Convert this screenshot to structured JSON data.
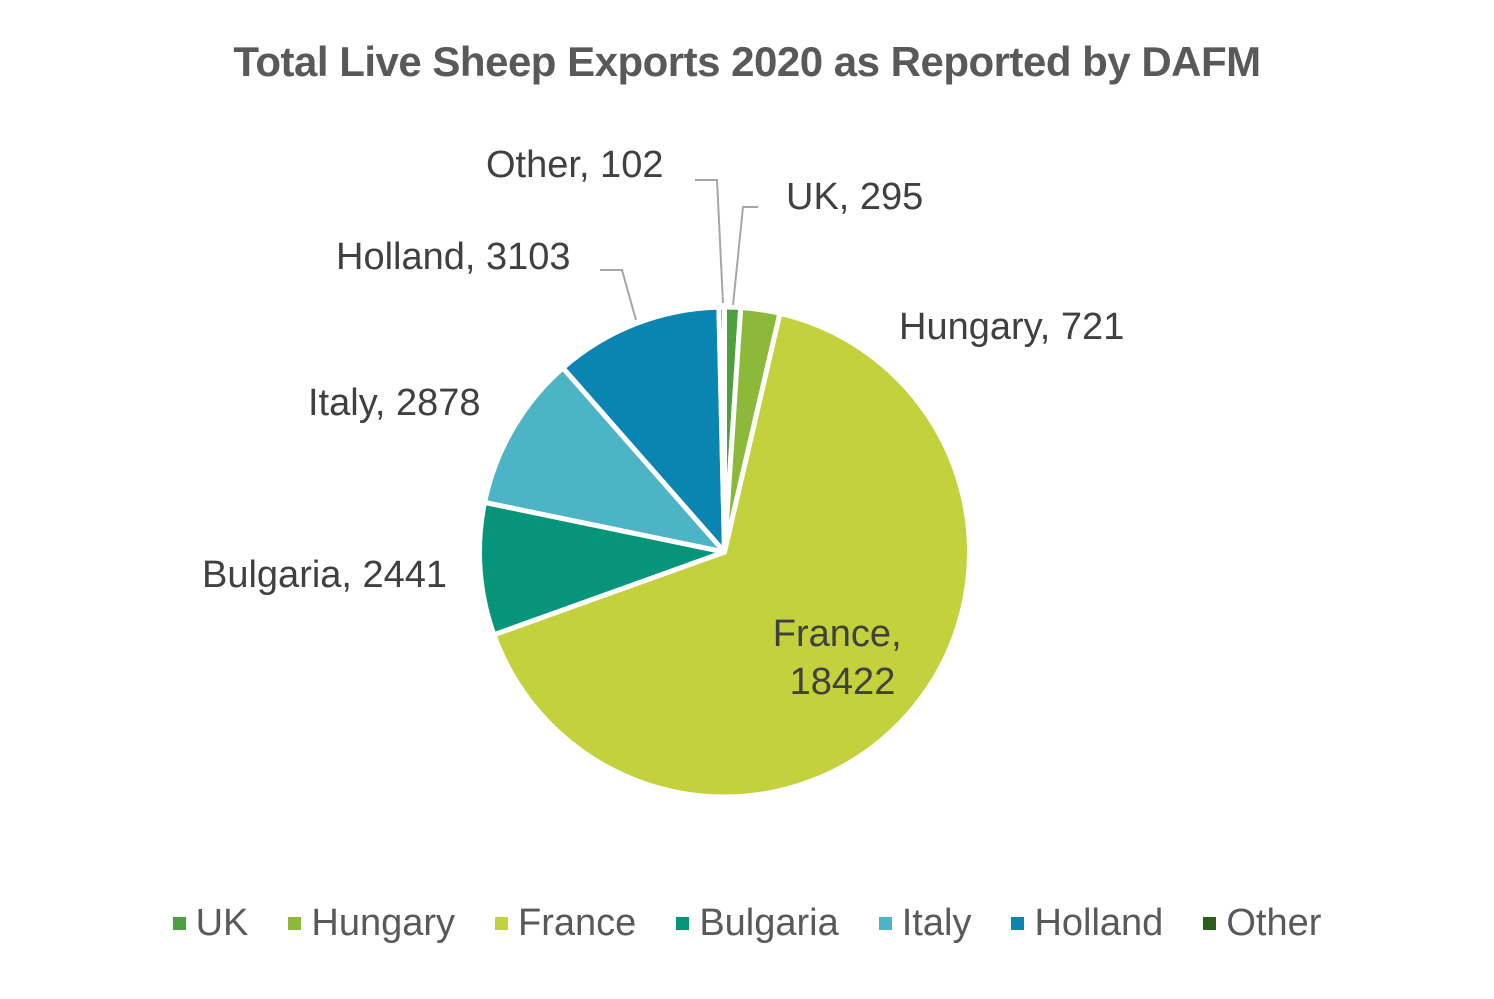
{
  "chart_data": {
    "type": "pie",
    "title": "Total Live Sheep Exports 2020 as Reported by DAFM",
    "categories": [
      "UK",
      "Hungary",
      "France",
      "Bulgaria",
      "Italy",
      "Holland",
      "Other"
    ],
    "values": [
      295,
      721,
      18422,
      2441,
      2878,
      3103,
      102
    ],
    "colors": [
      "#4e9f3d",
      "#8cb93a",
      "#c3d13c",
      "#06957a",
      "#4cb4c4",
      "#0a84b0",
      "#2d5e20"
    ],
    "data_labels": [
      "UK, 295",
      "Hungary, 721",
      "France, 18422",
      "Bulgaria, 2441",
      "Italy, 2878",
      "Holland, 3103",
      "Other, 102"
    ],
    "start_angle": "12 o'clock, clockwise",
    "legend_position": "bottom"
  }
}
